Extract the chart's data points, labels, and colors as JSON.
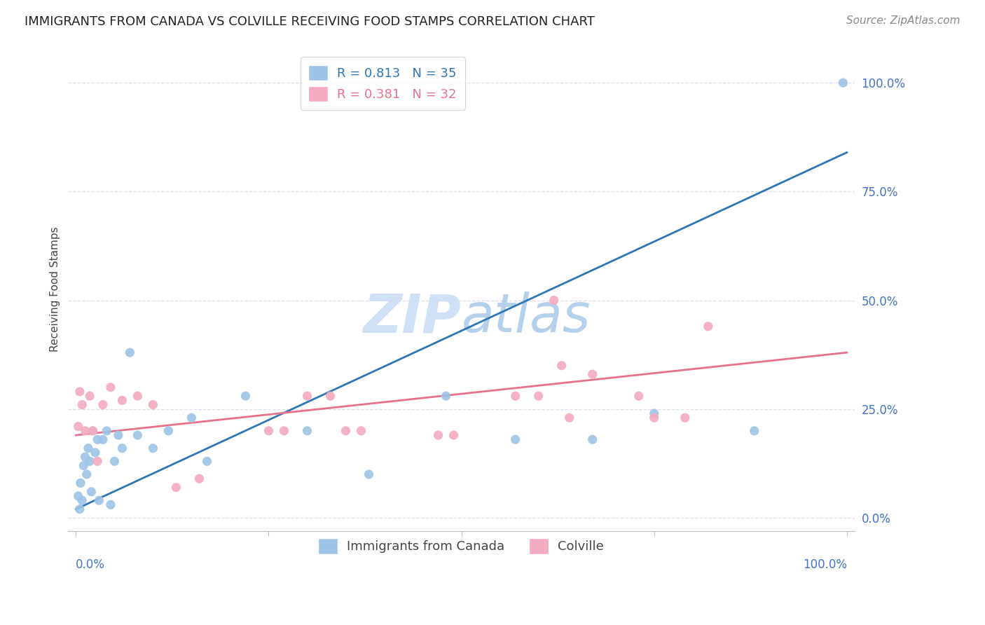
{
  "title": "IMMIGRANTS FROM CANADA VS COLVILLE RECEIVING FOOD STAMPS CORRELATION CHART",
  "source": "Source: ZipAtlas.com",
  "ylabel": "Receiving Food Stamps",
  "ytick_values": [
    0,
    25,
    50,
    75,
    100
  ],
  "xlim": [
    -1,
    101
  ],
  "ylim": [
    -3,
    108
  ],
  "watermark_text": "ZIPatlas",
  "legend_entries": [
    {
      "label_r": "R = 0.813",
      "label_n": "N = 35",
      "color": "#5B9BD5"
    },
    {
      "label_r": "R = 0.381",
      "label_n": "N = 32",
      "color": "#F4A7B9"
    }
  ],
  "legend2_entries": [
    {
      "label": "Immigrants from Canada",
      "color": "#88BBEE"
    },
    {
      "label": "Colville",
      "color": "#F4A7B9"
    }
  ],
  "blue_scatter_x": [
    0.3,
    0.5,
    0.6,
    0.8,
    1.0,
    1.2,
    1.4,
    1.6,
    1.8,
    2.0,
    2.2,
    2.5,
    2.8,
    3.0,
    3.5,
    4.0,
    4.5,
    5.0,
    5.5,
    6.0,
    7.0,
    8.0,
    10.0,
    12.0,
    15.0,
    17.0,
    22.0,
    30.0,
    38.0,
    48.0,
    57.0,
    67.0,
    75.0,
    88.0,
    99.5
  ],
  "blue_scatter_y": [
    5,
    2,
    8,
    4,
    12,
    14,
    10,
    16,
    13,
    6,
    20,
    15,
    18,
    4,
    18,
    20,
    3,
    13,
    19,
    16,
    38,
    19,
    16,
    20,
    23,
    13,
    28,
    20,
    10,
    28,
    18,
    18,
    24,
    20,
    100
  ],
  "pink_scatter_x": [
    0.3,
    0.5,
    0.8,
    1.2,
    1.8,
    2.2,
    2.8,
    3.5,
    4.5,
    6.0,
    8.0,
    10.0,
    25.0,
    27.0,
    30.0,
    33.0,
    47.0,
    49.0,
    57.0,
    62.0,
    63.0,
    67.0,
    73.0,
    75.0,
    79.0,
    82.0,
    60.0,
    64.0,
    13.0,
    16.0,
    35.0,
    37.0
  ],
  "pink_scatter_y": [
    21,
    29,
    26,
    20,
    28,
    20,
    13,
    26,
    30,
    27,
    28,
    26,
    20,
    20,
    28,
    28,
    19,
    19,
    28,
    50,
    35,
    33,
    28,
    23,
    23,
    44,
    28,
    23,
    7,
    9,
    20,
    20
  ],
  "blue_line_x": [
    0,
    100
  ],
  "blue_line_y": [
    2,
    84
  ],
  "pink_line_x": [
    0,
    100
  ],
  "pink_line_y": [
    19,
    38
  ],
  "blue_line_color": "#2E75B6",
  "pink_line_color": "#E8718A",
  "blue_scatter_color": "#9DC3E6",
  "pink_scatter_color": "#F4AABF",
  "background_color": "#FFFFFF",
  "grid_color": "#DDDDEE",
  "title_color": "#222222",
  "right_axis_color": "#4472C4",
  "bottom_axis_color": "#4472C4",
  "marker_size": 90,
  "title_fontsize": 13,
  "source_fontsize": 11
}
